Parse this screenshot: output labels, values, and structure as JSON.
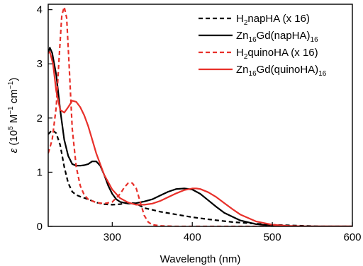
{
  "chart_data": {
    "type": "line",
    "xlabel": "Wavelength (nm)",
    "ylabel": {
      "symbol": "ε",
      "text": " (10",
      "exp1": "5",
      "unit1": " M",
      "exp2": "−1",
      "unit2": " cm",
      "exp3": "−1",
      "close": ")"
    },
    "xlim": [
      220,
      600
    ],
    "ylim": [
      0,
      4.1
    ],
    "xticks": [
      300,
      400,
      500,
      600
    ],
    "yticks": [
      0,
      1,
      2,
      3,
      4
    ],
    "grid": false,
    "legend_position": "top-right",
    "series": [
      {
        "label_parts": [
          [
            "H",
            ""
          ],
          [
            "2",
            "sub"
          ],
          [
            "napHA (x 16)",
            ""
          ]
        ],
        "color": "#000000",
        "dash": "dashed",
        "x": [
          220,
          225,
          230,
          235,
          240,
          245,
          250,
          255,
          260,
          270,
          280,
          290,
          300,
          310,
          320,
          330,
          340,
          360,
          380,
          400,
          420,
          450,
          480,
          500,
          520,
          540,
          560,
          600
        ],
        "y": [
          1.7,
          1.78,
          1.72,
          1.5,
          1.1,
          0.8,
          0.64,
          0.58,
          0.55,
          0.5,
          0.44,
          0.41,
          0.4,
          0.41,
          0.44,
          0.42,
          0.34,
          0.27,
          0.22,
          0.17,
          0.13,
          0.08,
          0.05,
          0.03,
          0.02,
          0.01,
          0.0,
          0.0
        ]
      },
      {
        "label_parts": [
          [
            "Zn",
            ""
          ],
          [
            "16",
            "sub"
          ],
          [
            "Gd(napHA)",
            ""
          ],
          [
            "16",
            "sub"
          ]
        ],
        "color": "#000000",
        "dash": "solid",
        "x": [
          220,
          222,
          225,
          230,
          235,
          240,
          245,
          250,
          255,
          260,
          265,
          270,
          275,
          280,
          285,
          290,
          295,
          300,
          305,
          310,
          320,
          330,
          340,
          350,
          360,
          370,
          380,
          390,
          400,
          410,
          420,
          430,
          440,
          460,
          480,
          500,
          520,
          540,
          560,
          600
        ],
        "y": [
          3.2,
          3.3,
          3.2,
          2.8,
          2.15,
          1.6,
          1.3,
          1.15,
          1.12,
          1.12,
          1.13,
          1.15,
          1.2,
          1.2,
          1.12,
          0.95,
          0.75,
          0.6,
          0.5,
          0.45,
          0.42,
          0.43,
          0.46,
          0.5,
          0.57,
          0.64,
          0.69,
          0.7,
          0.68,
          0.6,
          0.48,
          0.36,
          0.25,
          0.11,
          0.04,
          0.01,
          0.0,
          0.0,
          0.0,
          0.0
        ]
      },
      {
        "label_parts": [
          [
            "H",
            ""
          ],
          [
            "2",
            "sub"
          ],
          [
            "quinoHA (x 16)",
            ""
          ]
        ],
        "color": "#e8302a",
        "dash": "dashed",
        "x": [
          220,
          225,
          230,
          234,
          237,
          240,
          243,
          246,
          250,
          255,
          260,
          265,
          270,
          280,
          290,
          300,
          310,
          315,
          320,
          325,
          330,
          335,
          340,
          345,
          350,
          360,
          380,
          400,
          600
        ],
        "y": [
          1.35,
          1.6,
          2.2,
          3.2,
          3.9,
          4.05,
          3.85,
          3.0,
          1.8,
          1.1,
          0.75,
          0.58,
          0.5,
          0.44,
          0.42,
          0.45,
          0.6,
          0.72,
          0.8,
          0.8,
          0.7,
          0.45,
          0.2,
          0.08,
          0.03,
          0.01,
          0.0,
          0.0,
          0.0
        ]
      },
      {
        "label_parts": [
          [
            "Zn",
            ""
          ],
          [
            "16",
            "sub"
          ],
          [
            "Gd(quinoHA)",
            ""
          ],
          [
            "16",
            "sub"
          ]
        ],
        "color": "#e8302a",
        "dash": "solid",
        "x": [
          220,
          222,
          226,
          230,
          235,
          240,
          245,
          250,
          255,
          260,
          265,
          270,
          275,
          280,
          290,
          300,
          310,
          320,
          330,
          340,
          350,
          360,
          370,
          380,
          390,
          400,
          405,
          410,
          420,
          430,
          440,
          450,
          460,
          480,
          500,
          520,
          540,
          560,
          600
        ],
        "y": [
          3.2,
          3.22,
          3.0,
          2.5,
          2.15,
          2.1,
          2.2,
          2.32,
          2.3,
          2.2,
          2.05,
          1.85,
          1.6,
          1.35,
          0.95,
          0.68,
          0.52,
          0.44,
          0.4,
          0.4,
          0.42,
          0.47,
          0.54,
          0.61,
          0.67,
          0.7,
          0.7,
          0.69,
          0.63,
          0.54,
          0.43,
          0.32,
          0.22,
          0.09,
          0.03,
          0.01,
          0.0,
          0.0,
          0.0
        ]
      }
    ]
  }
}
